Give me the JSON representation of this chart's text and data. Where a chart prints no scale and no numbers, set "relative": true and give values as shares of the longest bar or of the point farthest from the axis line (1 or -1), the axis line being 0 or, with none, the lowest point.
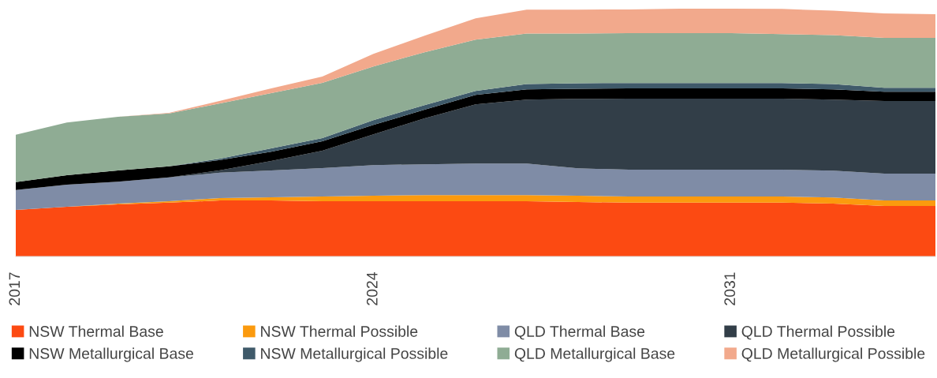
{
  "chart_data": {
    "type": "area",
    "stacked": true,
    "relative": true,
    "x": [
      2017,
      2018,
      2019,
      2020,
      2021,
      2022,
      2023,
      2024,
      2025,
      2026,
      2027,
      2028,
      2029,
      2030,
      2031,
      2032,
      2033,
      2034,
      2035
    ],
    "xlim": [
      2017,
      2035
    ],
    "xticks": [
      2017,
      2024,
      2031
    ],
    "tick_labels": "x",
    "grid": false,
    "legend": "bottom",
    "series": [
      {
        "name": "NSW Thermal Base",
        "color": "#fc4a12",
        "values": [
          0.188,
          0.201,
          0.21,
          0.217,
          0.226,
          0.226,
          0.223,
          0.223,
          0.223,
          0.223,
          0.223,
          0.22,
          0.217,
          0.217,
          0.217,
          0.217,
          0.213,
          0.204,
          0.204
        ]
      },
      {
        "name": "NSW Thermal Possible",
        "color": "#fb9a0e",
        "values": [
          0.0,
          0.0,
          0.003,
          0.006,
          0.01,
          0.013,
          0.019,
          0.022,
          0.025,
          0.025,
          0.025,
          0.025,
          0.025,
          0.025,
          0.025,
          0.025,
          0.025,
          0.022,
          0.022
        ]
      },
      {
        "name": "QLD Thermal Base",
        "color": "#7f8ca6",
        "values": [
          0.08,
          0.089,
          0.089,
          0.096,
          0.102,
          0.108,
          0.115,
          0.124,
          0.124,
          0.127,
          0.127,
          0.111,
          0.108,
          0.108,
          0.108,
          0.108,
          0.108,
          0.108,
          0.108
        ]
      },
      {
        "name": "QLD Thermal Possible",
        "color": "#323e48",
        "values": [
          0.0,
          0.0,
          0.0,
          0.0,
          0.01,
          0.038,
          0.07,
          0.124,
          0.185,
          0.239,
          0.258,
          0.28,
          0.287,
          0.287,
          0.287,
          0.287,
          0.287,
          0.293,
          0.293
        ]
      },
      {
        "name": "NSW Metallurgical Base",
        "color": "#000000",
        "values": [
          0.032,
          0.038,
          0.045,
          0.045,
          0.041,
          0.038,
          0.038,
          0.038,
          0.035,
          0.038,
          0.041,
          0.041,
          0.041,
          0.041,
          0.041,
          0.041,
          0.041,
          0.038,
          0.038
        ]
      },
      {
        "name": "NSW Metallurgical Possible",
        "color": "#3f5a6a",
        "values": [
          0.0,
          0.0,
          0.0,
          0.0,
          0.006,
          0.013,
          0.013,
          0.019,
          0.019,
          0.016,
          0.022,
          0.022,
          0.022,
          0.022,
          0.022,
          0.022,
          0.022,
          0.016,
          0.016
        ]
      },
      {
        "name": "QLD Metallurgical Base",
        "color": "#8fac94",
        "values": [
          0.191,
          0.213,
          0.217,
          0.213,
          0.223,
          0.223,
          0.223,
          0.217,
          0.213,
          0.207,
          0.204,
          0.201,
          0.201,
          0.201,
          0.201,
          0.197,
          0.197,
          0.201,
          0.201
        ]
      },
      {
        "name": "QLD Metallurgical Possible",
        "color": "#f2a98c",
        "values": [
          0.0,
          0.0,
          0.0,
          0.003,
          0.01,
          0.019,
          0.025,
          0.051,
          0.067,
          0.086,
          0.096,
          0.096,
          0.096,
          0.099,
          0.099,
          0.102,
          0.099,
          0.099,
          0.096
        ]
      }
    ]
  }
}
